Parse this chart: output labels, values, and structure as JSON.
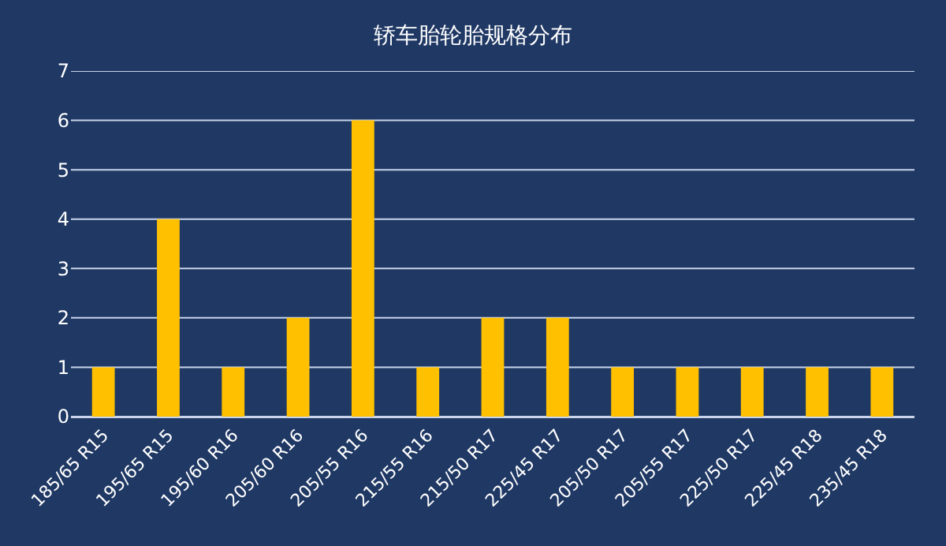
{
  "chart_data": {
    "type": "bar",
    "title": "轿车胎轮胎规格分布",
    "categories": [
      "185/65 R15",
      "195/65 R15",
      "195/60 R16",
      "205/60 R16",
      "205/55 R16",
      "215/55 R16",
      "215/50 R17",
      "225/45 R17",
      "205/50 R17",
      "205/55 R17",
      "225/50 R17",
      "225/45 R18",
      "235/45 R18"
    ],
    "values": [
      1,
      4,
      1,
      2,
      6,
      1,
      2,
      2,
      1,
      1,
      1,
      1,
      1
    ],
    "color": "#ffc000",
    "ylim": [
      0,
      7
    ],
    "yticks": [
      0,
      1,
      2,
      3,
      4,
      5,
      6,
      7
    ],
    "grid": "y"
  }
}
